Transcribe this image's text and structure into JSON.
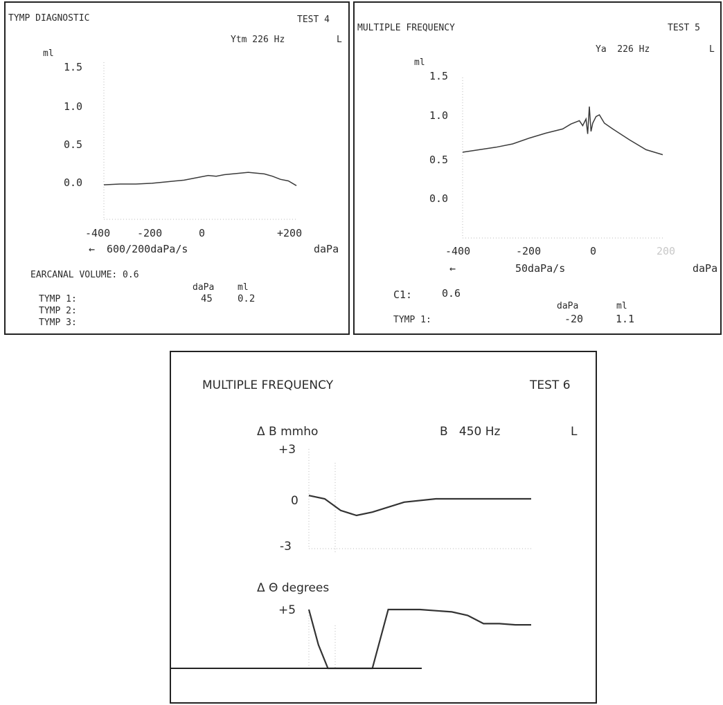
{
  "colors": {
    "ink": "#2a2a2a",
    "trace": "#3a3a3a",
    "axis": "#b8b8b8",
    "frame": "#222222"
  },
  "panel4": {
    "title": "TYMP DIAGNOSTIC",
    "test": "TEST 4",
    "probe": "Ytm 226 Hz",
    "ear": "L",
    "yunit": "ml",
    "rate": "600/200daPa/s",
    "xunit": "daPa",
    "arrow": "←",
    "ecv": "EARCANAL VOLUME: 0.6",
    "col_dapa": "daPa",
    "col_ml": "ml",
    "tymp1": "TYMP 1:",
    "tymp2": "TYMP 2:",
    "tymp3": "TYMP 3:",
    "tymp1_dapa": "45",
    "tymp1_ml": "0.2"
  },
  "panel5": {
    "title": "MULTIPLE FREQUENCY",
    "test": "TEST 5",
    "probe": "Ya  226 Hz",
    "ear": "L",
    "yunit": "ml",
    "rate": "50daPa/s",
    "xunit": "daPa",
    "arrow": "←",
    "c1_label": "C1:",
    "c1_value": "0.6",
    "col_dapa": "daPa",
    "col_ml": "ml",
    "tymp1": "TYMP 1:",
    "tymp1_dapa": "-20",
    "tymp1_ml": "1.1"
  },
  "panel6": {
    "title": "MULTIPLE FREQUENCY",
    "test": "TEST 6",
    "b_label": "Δ B mmho",
    "probe": "B   450 Hz",
    "ear": "L",
    "theta_label": "Δ Θ degrees"
  },
  "chart_data": [
    {
      "type": "line",
      "id": "test4",
      "title": "TYMP DIAGNOSTIC",
      "xlabel": "daPa",
      "ylabel": "ml",
      "xlim": [
        -400,
        200
      ],
      "ylim": [
        0,
        1.5
      ],
      "x_ticks": [
        "-400",
        "-200",
        "0",
        "+200"
      ],
      "y_ticks": [
        "1.5",
        "1.0",
        "0.5",
        "0.0"
      ],
      "series": [
        {
          "x": [
            -400,
            -350,
            -300,
            -250,
            -200,
            -150,
            -100,
            -75,
            -50,
            -25,
            0,
            25,
            50,
            75,
            100,
            125,
            150,
            175,
            200
          ],
          "y": [
            -0.01,
            0.0,
            0.0,
            0.01,
            0.03,
            0.05,
            0.09,
            0.11,
            0.1,
            0.12,
            0.13,
            0.14,
            0.15,
            0.14,
            0.13,
            0.1,
            0.06,
            0.04,
            -0.02
          ]
        }
      ]
    },
    {
      "type": "line",
      "id": "test5",
      "title": "MULTIPLE FREQUENCY",
      "xlabel": "daPa",
      "ylabel": "ml",
      "xlim": [
        -400,
        200
      ],
      "ylim": [
        -0.5,
        1.5
      ],
      "x_ticks": [
        "-400",
        "-200",
        "0",
        "200"
      ],
      "y_ticks": [
        "1.5",
        "1.0",
        "0.5",
        "0.0"
      ],
      "series": [
        {
          "x": [
            -400,
            -350,
            -300,
            -250,
            -200,
            -150,
            -100,
            -75,
            -50,
            -40,
            -30,
            -25,
            -20,
            -15,
            -10,
            0,
            10,
            25,
            50,
            100,
            150,
            200
          ],
          "y": [
            0.6,
            0.63,
            0.66,
            0.7,
            0.77,
            0.83,
            0.88,
            0.94,
            0.98,
            0.92,
            1.0,
            0.82,
            1.15,
            0.85,
            0.95,
            1.03,
            1.05,
            0.95,
            0.88,
            0.75,
            0.63,
            0.57
          ]
        }
      ]
    },
    {
      "type": "line",
      "id": "test6-B",
      "ylabel": "Δ B mmho",
      "ylim": [
        -3,
        3
      ],
      "y_ticks": [
        "+3",
        "0",
        "-3"
      ],
      "series": [
        {
          "x": [
            -400,
            -350,
            -300,
            -250,
            -200,
            -100,
            0,
            100,
            200,
            300
          ],
          "y": [
            0.2,
            0.0,
            -0.7,
            -1.0,
            -0.8,
            -0.2,
            0.0,
            0.0,
            0.0,
            0.0
          ]
        }
      ]
    },
    {
      "type": "line",
      "id": "test6-theta",
      "ylabel": "Δ Θ degrees",
      "ylim": [
        -4,
        5
      ],
      "y_ticks": [
        "+5"
      ],
      "series": [
        {
          "x": [
            -400,
            -370,
            -340,
            -250,
            -200,
            -150,
            -50,
            50,
            100,
            150,
            200,
            250,
            300
          ],
          "y": [
            5.0,
            2.0,
            -3.5,
            -3.5,
            -1.0,
            5.0,
            5.0,
            4.8,
            4.5,
            3.8,
            3.8,
            3.7,
            3.7
          ]
        }
      ]
    }
  ]
}
